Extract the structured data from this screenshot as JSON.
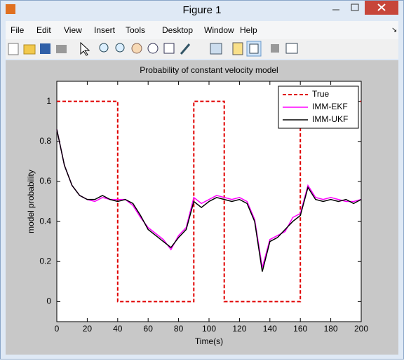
{
  "window": {
    "title": "Figure 1",
    "menu": [
      "File",
      "Edit",
      "View",
      "Insert",
      "Tools",
      "Desktop",
      "Window",
      "Help"
    ]
  },
  "chart_data": {
    "type": "line",
    "title": "Probability of constant velocity model",
    "xlabel": "Time(s)",
    "ylabel": "model probability",
    "xlim": [
      0,
      200
    ],
    "ylim": [
      -0.1,
      1.1
    ],
    "xticks": [
      0,
      20,
      40,
      60,
      80,
      100,
      120,
      140,
      160,
      180,
      200
    ],
    "yticks": [
      0,
      0.2,
      0.4,
      0.6,
      0.8,
      1
    ],
    "legend": "upper right",
    "grid": false,
    "series": [
      {
        "name": "True",
        "color": "#e00000",
        "dash": true,
        "x": [
          0,
          40,
          40,
          90,
          90,
          110,
          110,
          160,
          160,
          200
        ],
        "values": [
          1,
          1,
          0,
          0,
          1,
          1,
          0,
          0,
          1,
          1
        ]
      },
      {
        "name": "IMM-EKF",
        "color": "#ff00ff",
        "dash": false,
        "x": [
          0,
          5,
          10,
          15,
          20,
          25,
          30,
          35,
          40,
          45,
          50,
          55,
          60,
          65,
          70,
          75,
          80,
          85,
          90,
          95,
          100,
          105,
          110,
          115,
          120,
          125,
          130,
          135,
          140,
          145,
          150,
          155,
          160,
          165,
          170,
          175,
          180,
          185,
          190,
          195,
          200
        ],
        "values": [
          0.86,
          0.68,
          0.58,
          0.53,
          0.51,
          0.5,
          0.52,
          0.51,
          0.51,
          0.51,
          0.48,
          0.42,
          0.37,
          0.34,
          0.31,
          0.26,
          0.33,
          0.37,
          0.52,
          0.49,
          0.51,
          0.53,
          0.52,
          0.51,
          0.52,
          0.5,
          0.41,
          0.17,
          0.31,
          0.33,
          0.35,
          0.42,
          0.44,
          0.58,
          0.52,
          0.51,
          0.52,
          0.51,
          0.5,
          0.5,
          0.51
        ]
      },
      {
        "name": "IMM-UKF",
        "color": "#000000",
        "dash": false,
        "x": [
          0,
          5,
          10,
          15,
          20,
          25,
          30,
          35,
          40,
          45,
          50,
          55,
          60,
          65,
          70,
          75,
          80,
          85,
          90,
          95,
          100,
          105,
          110,
          115,
          120,
          125,
          130,
          135,
          140,
          145,
          150,
          155,
          160,
          165,
          170,
          175,
          180,
          185,
          190,
          195,
          200
        ],
        "values": [
          0.86,
          0.68,
          0.58,
          0.53,
          0.51,
          0.51,
          0.53,
          0.51,
          0.5,
          0.51,
          0.49,
          0.43,
          0.36,
          0.33,
          0.3,
          0.27,
          0.32,
          0.36,
          0.5,
          0.47,
          0.5,
          0.52,
          0.51,
          0.5,
          0.51,
          0.49,
          0.4,
          0.15,
          0.3,
          0.32,
          0.36,
          0.4,
          0.43,
          0.57,
          0.51,
          0.5,
          0.51,
          0.5,
          0.51,
          0.49,
          0.51
        ]
      }
    ]
  }
}
